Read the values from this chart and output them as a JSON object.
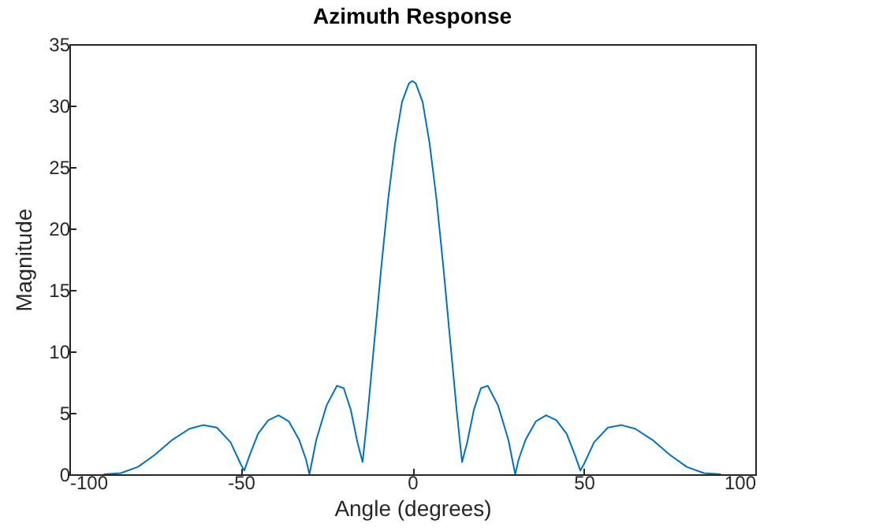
{
  "chart_data": {
    "type": "line",
    "title": "Azimuth Response",
    "xlabel": "Angle (degrees)",
    "ylabel": "Magnitude",
    "x": [
      -90,
      -85,
      -80,
      -75,
      -70,
      -65,
      -61,
      -57,
      -53,
      -50,
      -49,
      -47.5,
      -45,
      -42,
      -39,
      -36,
      -33,
      -31,
      -30,
      -28,
      -25,
      -22,
      -20,
      -18,
      -16,
      -14.5,
      -13,
      -11,
      -9,
      -7,
      -5,
      -3,
      -1,
      0,
      1,
      3,
      5,
      7,
      9,
      11,
      13,
      14.5,
      16,
      18,
      20,
      22,
      25,
      28,
      30,
      31,
      33,
      36,
      39,
      42,
      45,
      47.5,
      49,
      50,
      53,
      57,
      61,
      65,
      70,
      75,
      80,
      85,
      90
    ],
    "series": [
      {
        "color": "#0072bd",
        "values": [
          0,
          0.1,
          0.6,
          1.6,
          2.8,
          3.7,
          4.0,
          3.8,
          2.6,
          0.8,
          0.3,
          1.5,
          3.3,
          4.4,
          4.8,
          4.3,
          2.8,
          1.2,
          0,
          2.8,
          5.6,
          7.2,
          7.0,
          5.3,
          2.6,
          1.0,
          5,
          11,
          17,
          22.5,
          27,
          30.3,
          31.8,
          32,
          31.8,
          30.3,
          27,
          22.5,
          17,
          11,
          5,
          1.0,
          2.6,
          5.3,
          7.0,
          7.2,
          5.6,
          2.8,
          0,
          1.2,
          2.8,
          4.3,
          4.8,
          4.4,
          3.3,
          1.5,
          0.3,
          0.8,
          2.6,
          3.8,
          4.0,
          3.7,
          2.8,
          1.6,
          0.6,
          0.1,
          0
        ]
      }
    ],
    "xlim": [
      -100,
      100
    ],
    "xticks": [
      -100,
      -50,
      0,
      50,
      100
    ],
    "ylim": [
      0,
      35
    ],
    "yticks": [
      0,
      5,
      10,
      15,
      20,
      25,
      30,
      35
    ],
    "grid": false
  }
}
